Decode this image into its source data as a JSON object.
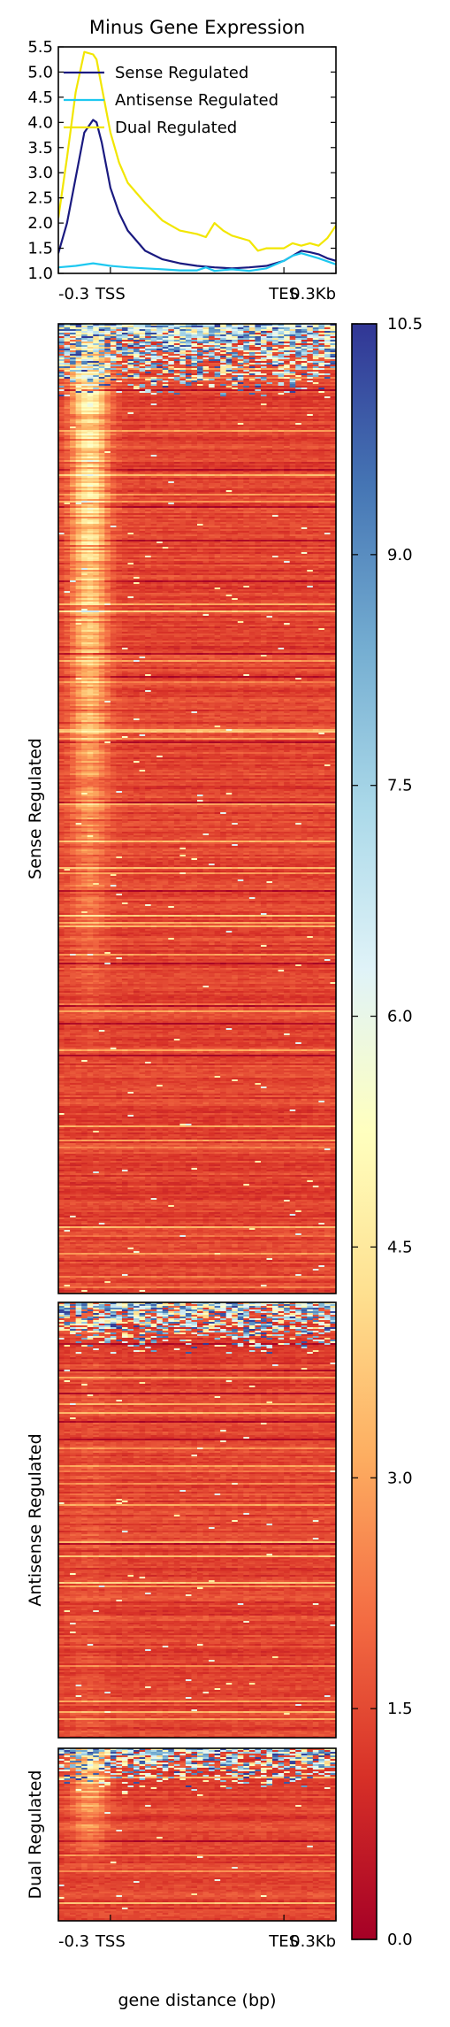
{
  "chart_data": [
    {
      "type": "line",
      "title": "Minus Gene Expression",
      "xlabel": "",
      "ylabel": "",
      "ylim": [
        1.0,
        5.5
      ],
      "yticks": [
        "1.0",
        "1.5",
        "2.0",
        "2.5",
        "3.0",
        "3.5",
        "4.0",
        "4.5",
        "5.0",
        "5.5"
      ],
      "xticks": [
        "-0.3",
        "TSS",
        "TES",
        "0.3Kb"
      ],
      "x_domain": [
        -0.3,
        1.3
      ],
      "x_tick_positions": [
        -0.3,
        0.0,
        1.0,
        1.3
      ],
      "legend_position": "top",
      "series": [
        {
          "name": "Sense Regulated",
          "color": "#1a1a80",
          "x": [
            -0.3,
            -0.25,
            -0.2,
            -0.15,
            -0.1,
            -0.08,
            -0.05,
            0.0,
            0.05,
            0.1,
            0.2,
            0.3,
            0.4,
            0.5,
            0.6,
            0.7,
            0.8,
            0.9,
            1.0,
            1.05,
            1.1,
            1.15,
            1.2,
            1.25,
            1.3
          ],
          "values": [
            1.4,
            2.0,
            2.9,
            3.8,
            4.05,
            4.0,
            3.6,
            2.7,
            2.2,
            1.85,
            1.45,
            1.28,
            1.2,
            1.15,
            1.12,
            1.1,
            1.12,
            1.15,
            1.25,
            1.35,
            1.45,
            1.42,
            1.38,
            1.3,
            1.25
          ]
        },
        {
          "name": "Antisense Regulated",
          "color": "#1ec8f0",
          "x": [
            -0.3,
            -0.2,
            -0.1,
            0.0,
            0.1,
            0.2,
            0.3,
            0.4,
            0.5,
            0.55,
            0.6,
            0.7,
            0.8,
            0.9,
            1.0,
            1.05,
            1.1,
            1.2,
            1.3
          ],
          "values": [
            1.12,
            1.15,
            1.2,
            1.15,
            1.12,
            1.1,
            1.08,
            1.06,
            1.06,
            1.12,
            1.05,
            1.08,
            1.05,
            1.1,
            1.25,
            1.35,
            1.4,
            1.3,
            1.18
          ]
        },
        {
          "name": "Dual Regulated",
          "color": "#f2e600",
          "x": [
            -0.3,
            -0.25,
            -0.2,
            -0.15,
            -0.1,
            -0.08,
            -0.05,
            0.0,
            0.05,
            0.1,
            0.2,
            0.3,
            0.4,
            0.5,
            0.55,
            0.6,
            0.65,
            0.7,
            0.8,
            0.85,
            0.9,
            1.0,
            1.05,
            1.1,
            1.15,
            1.2,
            1.25,
            1.3
          ],
          "values": [
            2.1,
            3.3,
            4.6,
            5.4,
            5.35,
            5.25,
            4.7,
            3.8,
            3.2,
            2.8,
            2.4,
            2.05,
            1.85,
            1.78,
            1.72,
            2.0,
            1.85,
            1.75,
            1.65,
            1.45,
            1.5,
            1.5,
            1.6,
            1.55,
            1.6,
            1.55,
            1.7,
            1.95
          ]
        }
      ]
    },
    {
      "type": "heatmap",
      "groups": [
        {
          "name": "Sense Regulated",
          "row_weight": 751
        },
        {
          "name": "Antisense Regulated",
          "row_weight": 337
        },
        {
          "name": "Dual Regulated",
          "row_weight": 134
        }
      ],
      "xticks": [
        "-0.3",
        "TSS",
        "TES",
        "0.3Kb"
      ],
      "x_tick_positions": [
        -0.3,
        0.0,
        1.0,
        1.3
      ],
      "xlabel": "gene distance (bp)",
      "colorbar": {
        "min": 0.0,
        "max": 10.5,
        "ticks": [
          "0.0",
          "1.5",
          "3.0",
          "4.5",
          "6.0",
          "7.5",
          "9.0",
          "10.5"
        ],
        "colormap": [
          "#a50026",
          "#d73027",
          "#f46d43",
          "#fdae61",
          "#fee090",
          "#ffffbf",
          "#e0f3f8",
          "#abd9e9",
          "#74add1",
          "#4575b4",
          "#313695"
        ]
      }
    }
  ]
}
